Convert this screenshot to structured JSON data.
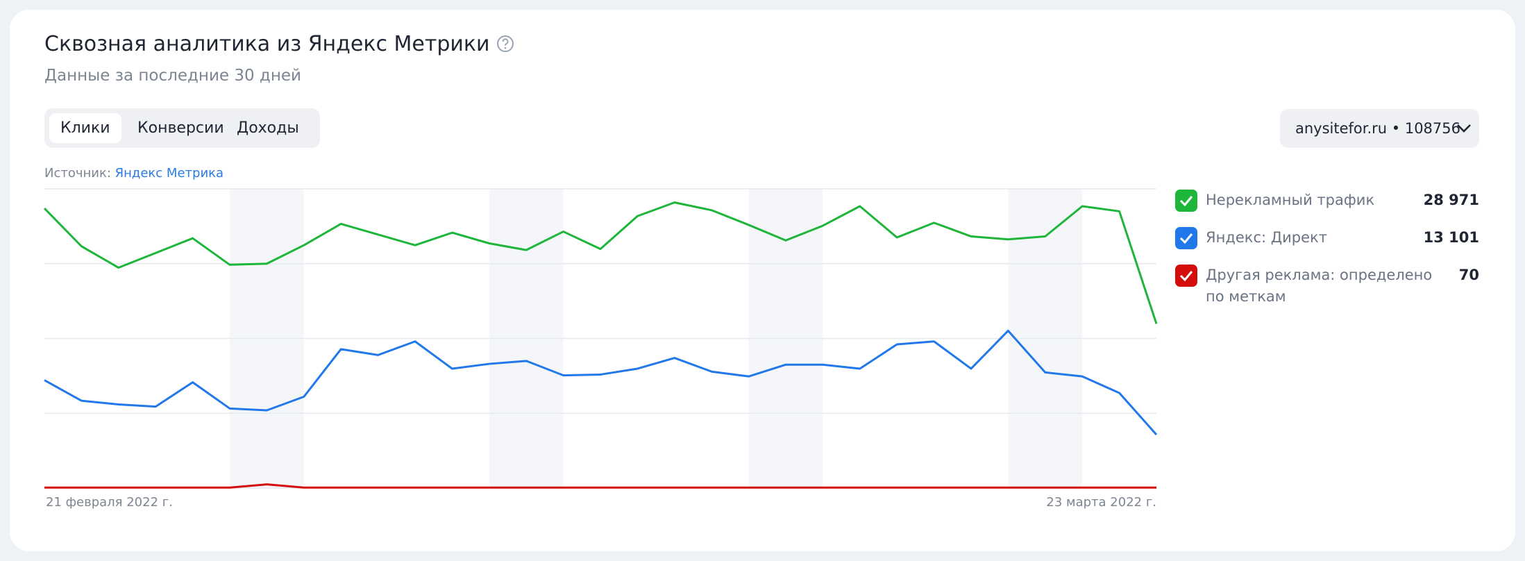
{
  "header": {
    "title": "Сквозная аналитика из Яндекс Метрики",
    "subtitle": "Данные за последние 30 дней"
  },
  "tabs": [
    "Клики",
    "Конверсии",
    "Доходы"
  ],
  "site_selector": "anysitefor.ru • 108756",
  "source": {
    "label": "Источник:",
    "link": "Яндекс Метрика"
  },
  "chart_data": {
    "type": "line",
    "x": [
      "21 февраля 2022 г.",
      null,
      null,
      null,
      null,
      null,
      null,
      null,
      null,
      null,
      null,
      null,
      null,
      null,
      null,
      null,
      null,
      null,
      null,
      null,
      null,
      null,
      null,
      null,
      null,
      null,
      null,
      null,
      null,
      null,
      "23 марта 2022 г."
    ],
    "ylim": [
      0,
      1120
    ],
    "yticks": [
      0,
      280,
      560,
      840,
      1120
    ],
    "grid": true,
    "series": [
      {
        "name": "Нерекламный трафик",
        "color": "#1db53a",
        "total": {
          "value": 28971,
          "label": "28 971"
        },
        "values": [
          1047,
          905,
          825,
          880,
          935,
          836,
          840,
          909,
          989,
          949,
          909,
          956,
          916,
          891,
          960,
          895,
          1018,
          1069,
          1040,
          985,
          927,
          982,
          1055,
          938,
          993,
          942,
          931,
          942,
          1055,
          1036,
          615
        ]
      },
      {
        "name": "Яндекс: Директ",
        "color": "#2178ea",
        "total": {
          "value": 13101,
          "label": "13 101"
        },
        "values": [
          404,
          327,
          313,
          305,
          396,
          298,
          291,
          342,
          520,
          498,
          549,
          447,
          465,
          476,
          422,
          425,
          447,
          487,
          436,
          418,
          462,
          462,
          447,
          538,
          549,
          447,
          589,
          433,
          418,
          356,
          200
        ]
      },
      {
        "name": "Другая реклама: определено по меткам",
        "color": "#d50c0c",
        "total": {
          "value": 70,
          "label": "70"
        },
        "values": [
          2,
          2,
          2,
          2,
          2,
          2,
          14,
          2,
          2,
          2,
          2,
          2,
          2,
          2,
          2,
          2,
          2,
          2,
          2,
          2,
          2,
          2,
          2,
          2,
          2,
          2,
          2,
          2,
          2,
          2,
          2
        ]
      }
    ]
  }
}
